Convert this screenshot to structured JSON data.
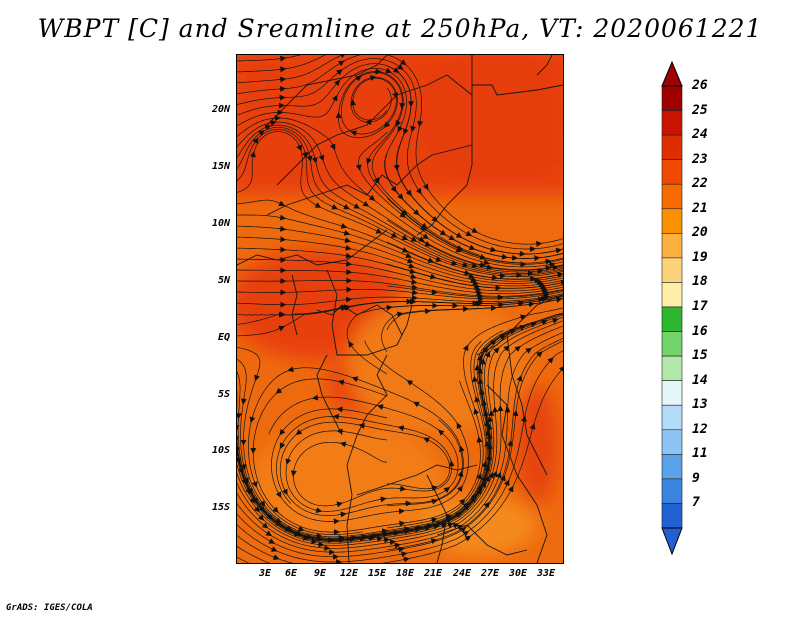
{
  "title": "WBPT [C] and Sreamline at 250hPa, VT: 2020061221",
  "lat_labels": [
    "20N",
    "15N",
    "10N",
    "5N",
    "EQ",
    "5S",
    "10S",
    "15S"
  ],
  "lon_labels": [
    "3E",
    "6E",
    "9E",
    "12E",
    "15E",
    "18E",
    "21E",
    "24E",
    "27E",
    "30E",
    "33E"
  ],
  "colorbar": {
    "labels": [
      "26",
      "25",
      "24",
      "23",
      "22",
      "21",
      "20",
      "19",
      "18",
      "17",
      "16",
      "15",
      "14",
      "13",
      "12",
      "11",
      "9",
      "7"
    ],
    "colors": [
      "#a00000",
      "#c81400",
      "#e02d00",
      "#f04a00",
      "#f86b00",
      "#fa9000",
      "#fbb040",
      "#fcd27a",
      "#fdefa8",
      "#2fb72f",
      "#73d46b",
      "#b3e9a8",
      "#e4f6f8",
      "#b4dcf8",
      "#8cc4f4",
      "#5aa2ea",
      "#3a84e0",
      "#2060d0"
    ],
    "top_arrow_color": "#a00000",
    "bottom_arrow_color": "#2060d0"
  },
  "credit": "GrADS: IGES/COLA"
}
